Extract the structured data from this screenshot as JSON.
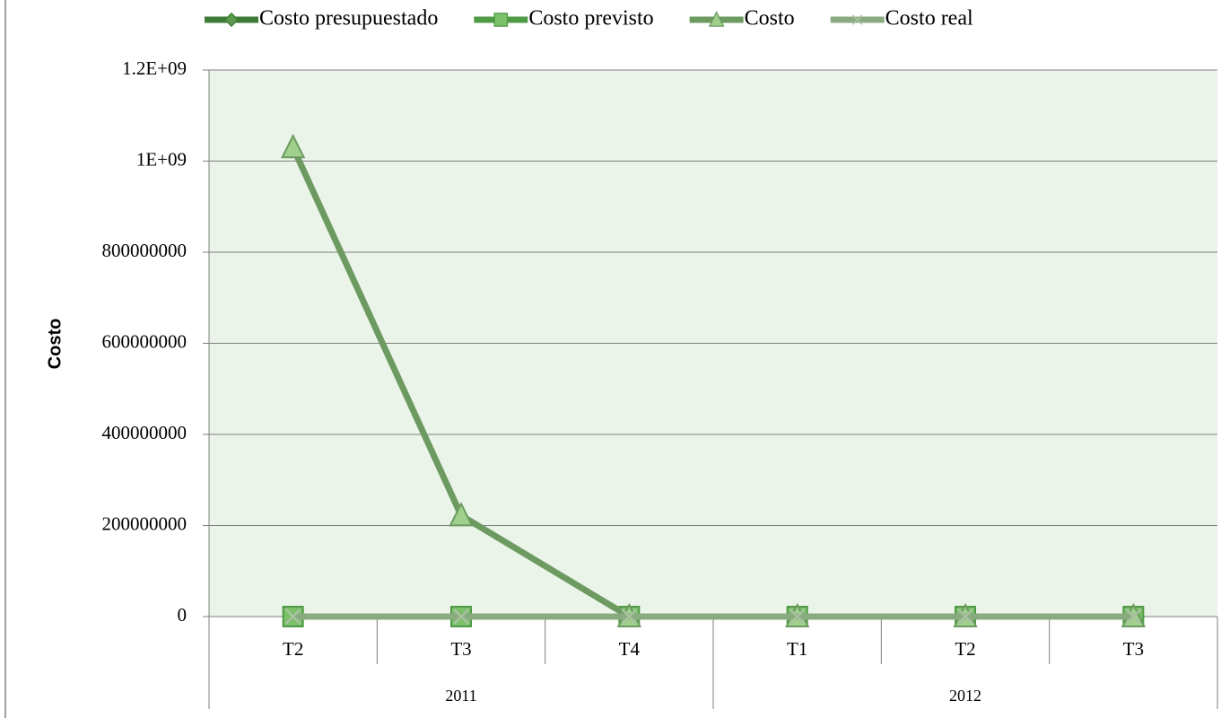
{
  "chart_data": {
    "type": "line",
    "y_label": "Costo",
    "categories": [
      "T2",
      "T3",
      "T4",
      "T1",
      "T2",
      "T3"
    ],
    "groups": [
      {
        "label": "2011",
        "size": 3
      },
      {
        "label": "2012",
        "size": 3
      }
    ],
    "series": [
      {
        "name": "Costo presupuestado",
        "color": "#3f7a37",
        "marker": "diamond",
        "values": [
          0,
          0,
          0,
          0,
          0,
          0
        ]
      },
      {
        "name": "Costo previsto",
        "color": "#4f9a45",
        "marker": "square",
        "values": [
          0,
          0,
          0,
          0,
          0,
          0
        ]
      },
      {
        "name": "Costo",
        "color": "#6c9a60",
        "marker": "triangle",
        "values": [
          1030000000,
          222000000,
          0,
          0,
          0,
          0
        ]
      },
      {
        "name": "Costo real",
        "color": "#8aab80",
        "marker": "x",
        "values": [
          0,
          0,
          0,
          0,
          0,
          0
        ]
      }
    ],
    "ylim": [
      0,
      1200000000
    ],
    "yticks": [
      0,
      200000000,
      400000000,
      600000000,
      800000000,
      {
        "value": 1000000000,
        "label": "1E+09"
      },
      {
        "value": 1200000000,
        "label": "1.2E+09"
      }
    ],
    "grid": true,
    "legend": "top",
    "plot_background": "#ebf4e9"
  }
}
